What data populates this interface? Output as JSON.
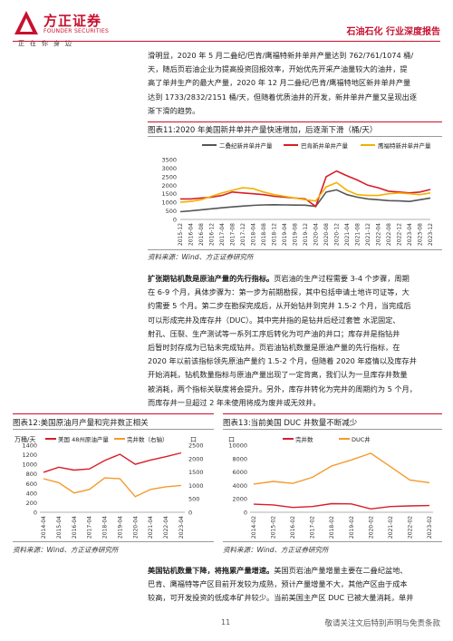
{
  "header": {
    "company_cn": "方正证券",
    "company_en": "FOUNDER SECURITIES",
    "slogan": "正在你身边",
    "section": "石油石化 行业深度报告"
  },
  "intro_paragraph": [
    "滑明显，2020 年 5 月二叠纪/巴肯/鹰福特新井单井产量达到 762/761/1074 桶/",
    "天，随后页岩油企业为提高投资回报效率，开始优先开采产油量较大的油井，提",
    "高了单井生产的最大产量，2020 年 12 月二叠纪/巴肯/鹰福特地区新井单井产量",
    "达到 1733/2832/2151 桶/天，但随着优质油井的开发，新井单井产量又呈现出逐",
    "渐下滑的趋势。"
  ],
  "figure11": {
    "title": "图表11:2020 年美国新井单井产量快速增加，后逐渐下滑（桶/天）",
    "source": "资料来源：Wind、方正证券研究所",
    "legend": [
      "二叠纪新井单井产量",
      "巴肯新井单井产量",
      "鹰福特新井单井产量"
    ],
    "colors": [
      "#555555",
      "#d81e28",
      "#f2b100"
    ]
  },
  "chart_data": [
    {
      "type": "line",
      "title": "图表11:2020 年美国新井单井产量快速增加，后逐渐下滑（桶/天）",
      "x": [
        "2015-12",
        "2016-04",
        "2016-08",
        "2016-12",
        "2017-04",
        "2017-08",
        "2017-12",
        "2018-04",
        "2018-08",
        "2018-12",
        "2019-04",
        "2019-08",
        "2019-12",
        "2020-04",
        "2020-08",
        "2020-12",
        "2021-04",
        "2021-08",
        "2021-12",
        "2022-04",
        "2022-08",
        "2022-12",
        "2023-04",
        "2023-08",
        "2023-12"
      ],
      "series": [
        {
          "name": "二叠纪新井单井产量",
          "values": [
            450,
            500,
            560,
            620,
            680,
            730,
            780,
            820,
            850,
            860,
            850,
            840,
            830,
            760,
            1600,
            1730,
            1450,
            1300,
            1200,
            1150,
            1100,
            1080,
            1050,
            1150,
            1250
          ]
        },
        {
          "name": "巴肯新井单井产量",
          "values": [
            1200,
            1200,
            1250,
            1300,
            1400,
            1600,
            1550,
            1500,
            1450,
            1350,
            1300,
            1250,
            1200,
            760,
            2500,
            2832,
            2550,
            2300,
            2000,
            1850,
            1650,
            1600,
            1550,
            1600,
            1750
          ]
        },
        {
          "name": "鹰福特新井单井产量",
          "values": [
            1000,
            1050,
            1150,
            1350,
            1550,
            1700,
            1850,
            1800,
            1600,
            1450,
            1350,
            1250,
            1150,
            1074,
            1900,
            2151,
            1700,
            1450,
            1400,
            1400,
            1500,
            1550,
            1500,
            1450,
            1550
          ]
        }
      ],
      "ylim": [
        0,
        3500
      ],
      "yticks": [
        0,
        500,
        1000,
        1500,
        2000,
        2500,
        3000,
        3500
      ]
    },
    {
      "type": "line",
      "title": "图表12:美国原油月产量和完井数正相关",
      "x": [
        "2014-04",
        "2015-04",
        "2016-04",
        "2017-04",
        "2018-04",
        "2019-04",
        "2020-04",
        "2021-04",
        "2022-04",
        "2023-04"
      ],
      "series": [
        {
          "name": "美国 48州原油产量",
          "axis": "left",
          "values": [
            835,
            940,
            880,
            905,
            1080,
            1210,
            1000,
            1090,
            1160,
            1240
          ]
        },
        {
          "name": "完井数",
          "axis": "right",
          "values": [
            1250,
            1100,
            720,
            850,
            1280,
            1250,
            580,
            850,
            950,
            1000
          ]
        }
      ],
      "ylim_left": [
        0,
        1400
      ],
      "ylim_right": [
        0,
        2500
      ],
      "left_unit": "万桶/天",
      "right_unit": "口"
    },
    {
      "type": "line",
      "title": "图表13:当前美国 DUC 井数量不断减少",
      "x": [
        "2014-02",
        "2015-02",
        "2016-02",
        "2017-02",
        "2018-02",
        "2019-02",
        "2020-02",
        "2021-02",
        "2022-02",
        "2023-02"
      ],
      "series": [
        {
          "name": "完井数",
          "values": [
            1200,
            1100,
            720,
            850,
            1280,
            1250,
            500,
            850,
            950,
            1000
          ]
        },
        {
          "name": "DUC井",
          "values": [
            4200,
            4600,
            4300,
            5200,
            6900,
            7800,
            8800,
            6800,
            4800,
            4400
          ]
        }
      ],
      "ylim": [
        0,
        10000
      ],
      "unit": "口"
    }
  ],
  "para2": {
    "lead": "扩张期钻机数是原油产量的先行指标。",
    "lines": [
      "页岩油的生产过程需要 3-4 个步骤，周期",
      "在 6-9 个月，具体步骤为：第一步为前期勘探，其中包括申请土地许可证等，大",
      "约需要 5 个月。第二步在勘探完成后，从开始钻井到完井 1.5-2 个月，当完成后",
      "可以形成完井及库存井（DUC）。其中完井指的是钻井后经过套管 水泥固定、",
      "射孔、压裂、生产测试等一系列工序后转化为可产油的井口；库存井是指钻井",
      "后暂时封存成为已钻未完成钻井。页岩油钻机数量是原油产量的先行指标，在",
      "2020 年以前该指标领先原油产量约 1.5-2 个月，但随着 2020 年疫情以及库存井",
      "开始消耗，钻机数量指标与原油产量出现了一定背离，我们认为一旦库存井数量",
      "被消耗，两个指标关联度将会提升。另外，库存井转化为完井的周期约为 5 个月，",
      "而库存井一旦超过 2 年未使用将成为废井或无效井。"
    ]
  },
  "figure12": {
    "title": "图表12:美国原油月产量和完井数正相关",
    "source": "资料来源：Wind、方正证券研究所",
    "left_unit": "万桶/天",
    "right_unit": "口",
    "legend": [
      "美国 48州原油产量",
      "完井数（右轴）"
    ],
    "colors": [
      "#d81e28",
      "#f59a2c"
    ],
    "left_ticks": [
      "0",
      "200",
      "400",
      "600",
      "800",
      "1000",
      "1200",
      "1400"
    ],
    "right_ticks": [
      "0",
      "500",
      "1000",
      "1500",
      "2000",
      "2500"
    ],
    "xticks": [
      "2014-04",
      "2015-04",
      "2016-04",
      "2017-04",
      "2018-04",
      "2019-04",
      "2020-04",
      "2021-04",
      "2022-04",
      "2023-04"
    ]
  },
  "figure13": {
    "title": "图表13:当前美国 DUC 井数量不断减少",
    "source": "资料来源：Wind、方正证券研究所",
    "unit": "口",
    "legend": [
      "完井数",
      "DUC井"
    ],
    "colors": [
      "#d81e28",
      "#f59a2c"
    ],
    "yticks": [
      "0",
      "2000",
      "4000",
      "6000",
      "8000",
      "10000"
    ],
    "xticks": [
      "2014-02",
      "2015-02",
      "2016-02",
      "2017-02",
      "2018-02",
      "2019-02",
      "2020-02",
      "2021-02",
      "2022-02",
      "2023-02"
    ]
  },
  "para3": {
    "lead": "美国钻机数量下降，将拖累产量增速。",
    "lines": [
      "美国页岩油产量增量主要在二叠纪盆地、",
      "巴肯、鹰福特等产区目前开发较为成熟，预计产量增量不大，其他产区由于成本",
      "较高，可开发投资的低成本矿井较少。当前美国主产区 DUC 已被大量消耗，单井"
    ]
  },
  "footer": {
    "page": "11",
    "note": "敬请关注文后特别声明与免责条款"
  }
}
